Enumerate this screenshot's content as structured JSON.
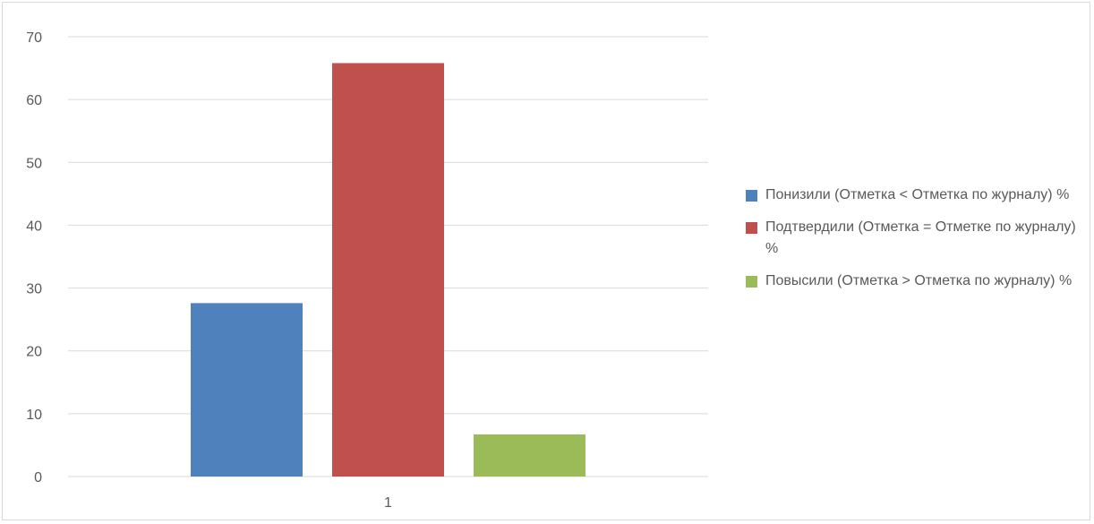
{
  "chart_data": {
    "type": "bar",
    "title": "",
    "xlabel": "",
    "ylabel": "",
    "categories": [
      "1"
    ],
    "ylim": [
      0,
      70
    ],
    "yticks": [
      0,
      10,
      20,
      30,
      40,
      50,
      60,
      70
    ],
    "grid": true,
    "legend_position": "right",
    "series": [
      {
        "name": "Понизили (Отметка < Отметка по журналу) %",
        "values": [
          27.6
        ],
        "color": "#4F81BD"
      },
      {
        "name": "Подтвердили (Отметка = Отметке по журналу) %",
        "values": [
          65.8
        ],
        "color": "#C0504D"
      },
      {
        "name": "Повысили (Отметка > Отметка по журналу) %",
        "values": [
          6.7
        ],
        "color": "#9BBB59"
      }
    ]
  }
}
